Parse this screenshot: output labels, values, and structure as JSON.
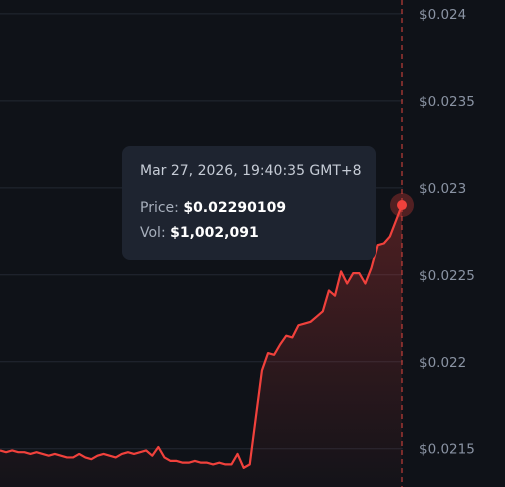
{
  "chart_data": {
    "type": "area",
    "y_axis_side": "right",
    "ylim": [
      0.02128,
      0.02408
    ],
    "y_ticks": [
      "$0.024",
      "$0.0235",
      "$0.023",
      "$0.0225",
      "$0.022",
      "$0.0215"
    ],
    "y_tick_values": [
      0.024,
      0.0235,
      0.023,
      0.0225,
      0.022,
      0.0215
    ],
    "grid": true,
    "series": [
      {
        "values": [
          0.02149,
          0.02148,
          0.02149,
          0.02148,
          0.02148,
          0.02147,
          0.02148,
          0.02147,
          0.02146,
          0.02147,
          0.02146,
          0.02145,
          0.02145,
          0.02147,
          0.02145,
          0.02144,
          0.02146,
          0.02147,
          0.02146,
          0.02145,
          0.02147,
          0.02148,
          0.02147,
          0.02148,
          0.02149,
          0.02146,
          0.02151,
          0.02145,
          0.02143,
          0.02143,
          0.02142,
          0.02142,
          0.02143,
          0.02142,
          0.02142,
          0.02141,
          0.02142,
          0.02141,
          0.02141,
          0.02147,
          0.02139,
          0.02141,
          0.02168,
          0.02195,
          0.02205,
          0.02204,
          0.0221,
          0.02215,
          0.02214,
          0.02221,
          0.02222,
          0.02223,
          0.02226,
          0.02229,
          0.02241,
          0.02238,
          0.02252,
          0.02245,
          0.02251,
          0.02251,
          0.02245,
          0.02254,
          0.02267,
          0.02268,
          0.02272,
          0.02281,
          0.02290109
        ]
      }
    ],
    "line_color": "#f0413c",
    "area_color": "#f0413c",
    "grid_color": "#232833",
    "crosshair_color": "#e0453e"
  },
  "tooltip": {
    "date": "Mar 27, 2026, 19:40:35 GMT+8",
    "price_label": "Price:",
    "price_value": "$0.02290109",
    "vol_label": "Vol:",
    "vol_value": "$1,002,091"
  }
}
